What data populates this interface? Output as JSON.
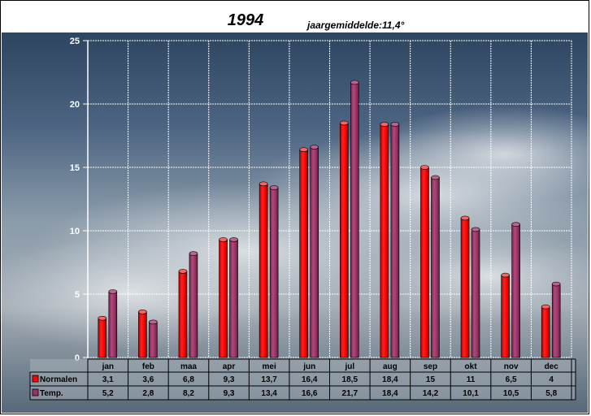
{
  "title": "1994",
  "subtitle": "jaargemiddelde:11,4°",
  "chart_data": {
    "type": "bar",
    "categories": [
      "jan",
      "feb",
      "maa",
      "apr",
      "mei",
      "jun",
      "jul",
      "aug",
      "sep",
      "okt",
      "nov",
      "dec"
    ],
    "series": [
      {
        "name": "Normalen",
        "color": "#ff0000",
        "values": [
          3.1,
          3.6,
          6.8,
          9.3,
          13.7,
          16.4,
          18.5,
          18.4,
          15,
          11,
          6.5,
          4
        ],
        "labels": [
          "3,1",
          "3,6",
          "6,8",
          "9,3",
          "13,7",
          "16,4",
          "18,5",
          "18,4",
          "15",
          "11",
          "6,5",
          "4"
        ]
      },
      {
        "name": "Temp.",
        "color": "#993366",
        "values": [
          5.2,
          2.8,
          8.2,
          9.3,
          13.4,
          16.6,
          21.7,
          18.4,
          14.2,
          10.1,
          10.5,
          5.8
        ],
        "labels": [
          "5,2",
          "2,8",
          "8,2",
          "9,3",
          "13,4",
          "16,6",
          "21,7",
          "18,4",
          "14,2",
          "10,1",
          "10,5",
          "5,8"
        ]
      }
    ],
    "ylim": [
      0,
      25
    ],
    "yticks": [
      0,
      5,
      10,
      15,
      20,
      25
    ],
    "grid": true,
    "legend": "data-table"
  }
}
